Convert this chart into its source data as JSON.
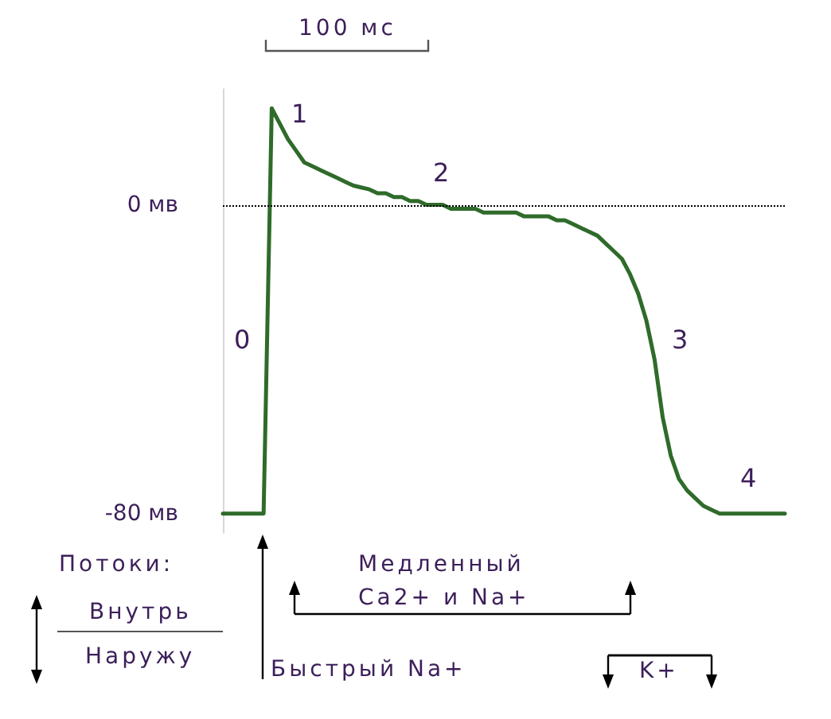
{
  "chart_data": {
    "type": "line",
    "categories": [
      null,
      null,
      null,
      null,
      null,
      null,
      null,
      null,
      null,
      null,
      null,
      null,
      null,
      null,
      null,
      null,
      null,
      null,
      null,
      null,
      null,
      null,
      null,
      null,
      null,
      null,
      null,
      null,
      null,
      null,
      null,
      null,
      null,
      null,
      null,
      null,
      null,
      null,
      null,
      null,
      null,
      null,
      null,
      null,
      null,
      null,
      null,
      null,
      null,
      null,
      null,
      null,
      null,
      null,
      null,
      null,
      null,
      null,
      null,
      null,
      null,
      null,
      null,
      null,
      null,
      null,
      null,
      null,
      null,
      null
    ],
    "series": [
      {
        "color": "#2f6b2a",
        "values": [
          -80,
          -80,
          -80,
          -80,
          -80,
          -80,
          25,
          21,
          17,
          14,
          11,
          10,
          9,
          8,
          7,
          6,
          5,
          4.5,
          4,
          3,
          3,
          2,
          2,
          1,
          1,
          0,
          0,
          0,
          -1,
          -1,
          -1,
          -1,
          -2,
          -2,
          -2,
          -2,
          -2,
          -3,
          -3,
          -3,
          -3,
          -4,
          -4,
          -5,
          -6,
          -7,
          -8,
          -10,
          -12,
          -14,
          -18,
          -23,
          -30,
          -40,
          -55,
          -65,
          -71,
          -74,
          -76,
          -78,
          -79,
          -80,
          -80,
          -80,
          -80,
          -80,
          -80,
          -80,
          -80,
          -80
        ]
      }
    ],
    "ylim": [
      -85,
      30
    ],
    "yticks": [
      {
        "value": 0,
        "label": "0 мв"
      },
      {
        "value": -80,
        "label": "-80 мв"
      }
    ],
    "tick_labels": "y",
    "grid": false,
    "line_style": "solid",
    "ref_lines": [
      {
        "axis": "y",
        "value": 0,
        "color": "#000000",
        "line_style": "dotted"
      }
    ],
    "annotations": [
      "0",
      "1",
      "2",
      "3",
      "4",
      "100 мс",
      "Потоки:",
      "Внутрь",
      "Наружу",
      "Быстрый Na+",
      "Медленный",
      "Ca2+ и Na+",
      "K+"
    ]
  }
}
